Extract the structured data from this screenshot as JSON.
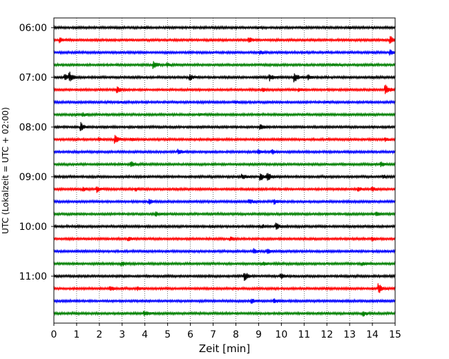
{
  "chart_data": {
    "type": "line",
    "title": "",
    "xlabel": "Zeit  [min]",
    "ylabel": "UTC (Lokalzeit = UTC + 02:00)",
    "xlim": [
      0,
      15
    ],
    "x_ticks": [
      0,
      1,
      2,
      3,
      4,
      5,
      6,
      7,
      8,
      9,
      10,
      11,
      12,
      13,
      14,
      15
    ],
    "y_tick_labels": [
      "06:00",
      "07:00",
      "08:00",
      "09:00",
      "10:00",
      "11:00"
    ],
    "grid": "vertical-dotted",
    "color_cycle": [
      "#000000",
      "#ff0000",
      "#0000ff",
      "#008000"
    ],
    "trace_interval_minutes": 15,
    "traces": [
      {
        "start": "06:00",
        "events": [
          [
            4.0,
            1
          ],
          [
            9.0,
            1
          ],
          [
            13.0,
            1
          ]
        ]
      },
      {
        "start": "06:15",
        "events": [
          [
            0.3,
            3
          ],
          [
            8.6,
            3
          ],
          [
            14.8,
            6
          ]
        ]
      },
      {
        "start": "06:30",
        "events": [
          [
            9.1,
            2
          ],
          [
            14.8,
            3
          ]
        ]
      },
      {
        "start": "06:45",
        "events": [
          [
            4.4,
            6
          ],
          [
            5.0,
            2
          ],
          [
            12.3,
            1
          ]
        ]
      },
      {
        "start": "07:00",
        "events": [
          [
            0.5,
            4
          ],
          [
            0.7,
            6
          ],
          [
            6.0,
            4
          ],
          [
            9.5,
            4
          ],
          [
            10.6,
            6
          ],
          [
            11.2,
            3
          ]
        ]
      },
      {
        "start": "07:15",
        "events": [
          [
            2.8,
            4
          ],
          [
            9.2,
            2
          ],
          [
            10.8,
            2
          ],
          [
            14.6,
            6
          ]
        ]
      },
      {
        "start": "07:30",
        "events": [
          [
            2.9,
            1
          ],
          [
            8.0,
            2
          ],
          [
            12.0,
            1
          ]
        ]
      },
      {
        "start": "07:45",
        "events": [
          [
            1.3,
            2
          ],
          [
            6.4,
            1
          ]
        ]
      },
      {
        "start": "08:00",
        "events": [
          [
            1.2,
            6
          ],
          [
            9.1,
            3
          ]
        ]
      },
      {
        "start": "08:15",
        "events": [
          [
            2.0,
            2
          ],
          [
            2.7,
            6
          ],
          [
            3.4,
            2
          ],
          [
            14.6,
            2
          ]
        ]
      },
      {
        "start": "08:30",
        "events": [
          [
            5.5,
            3
          ],
          [
            9.0,
            3
          ],
          [
            9.6,
            3
          ]
        ]
      },
      {
        "start": "08:45",
        "events": [
          [
            3.4,
            3
          ],
          [
            14.4,
            3
          ]
        ]
      },
      {
        "start": "09:00",
        "events": [
          [
            8.3,
            3
          ],
          [
            9.1,
            6
          ],
          [
            9.4,
            6
          ],
          [
            14.5,
            2
          ]
        ]
      },
      {
        "start": "09:15",
        "events": [
          [
            1.3,
            3
          ],
          [
            1.9,
            4
          ],
          [
            3.6,
            2
          ],
          [
            13.4,
            3
          ],
          [
            14.0,
            3
          ]
        ]
      },
      {
        "start": "09:30",
        "events": [
          [
            4.2,
            3
          ],
          [
            8.6,
            3
          ],
          [
            9.7,
            3
          ]
        ]
      },
      {
        "start": "09:45",
        "events": [
          [
            4.5,
            3
          ],
          [
            14.2,
            2
          ]
        ]
      },
      {
        "start": "10:00",
        "events": [
          [
            7.0,
            1
          ],
          [
            9.2,
            2
          ],
          [
            9.8,
            4
          ]
        ]
      },
      {
        "start": "10:15",
        "events": [
          [
            3.3,
            2
          ],
          [
            7.8,
            2
          ],
          [
            14.0,
            2
          ]
        ]
      },
      {
        "start": "10:30",
        "events": [
          [
            8.8,
            3
          ],
          [
            9.4,
            3
          ]
        ]
      },
      {
        "start": "10:45",
        "events": [
          [
            3.0,
            3
          ],
          [
            9.2,
            2
          ],
          [
            13.6,
            2
          ]
        ]
      },
      {
        "start": "11:00",
        "events": [
          [
            8.4,
            6
          ],
          [
            10.0,
            3
          ]
        ]
      },
      {
        "start": "11:15",
        "events": [
          [
            2.5,
            3
          ],
          [
            3.7,
            2
          ],
          [
            14.3,
            6
          ]
        ]
      },
      {
        "start": "11:30",
        "events": [
          [
            8.7,
            3
          ],
          [
            9.7,
            3
          ]
        ]
      },
      {
        "start": "11:45",
        "events": [
          [
            4.0,
            3
          ],
          [
            13.6,
            3
          ]
        ]
      }
    ]
  }
}
